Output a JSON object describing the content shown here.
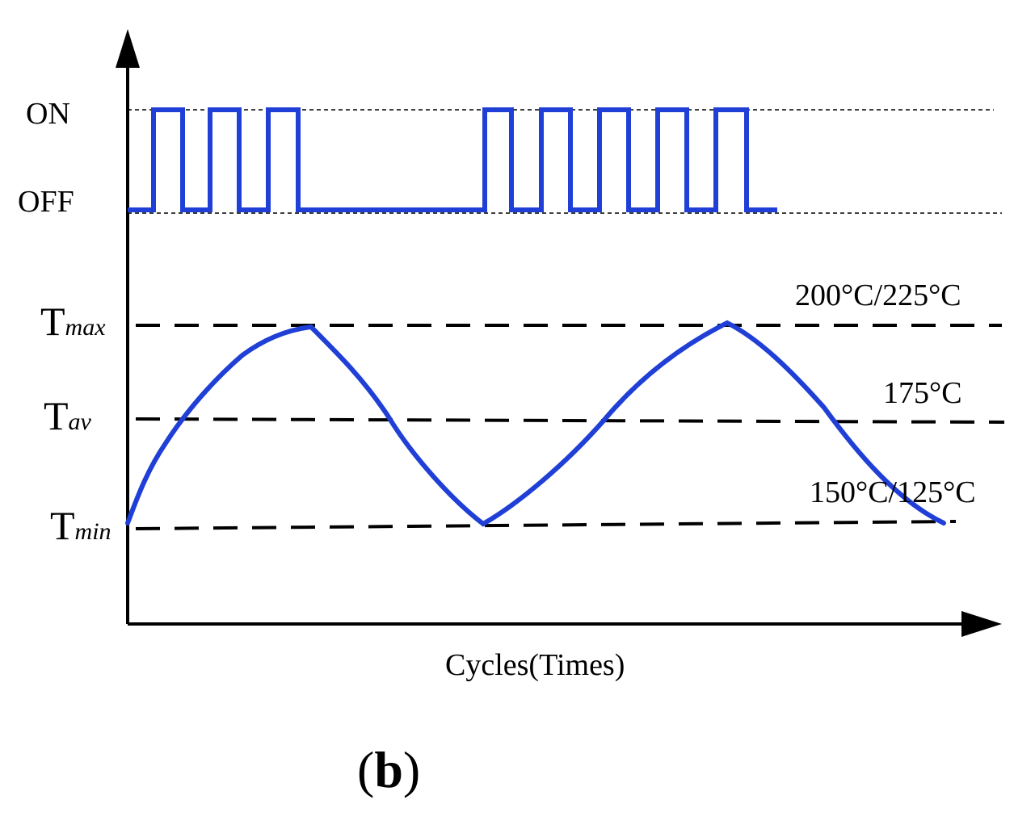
{
  "signal": {
    "on_label": "ON",
    "off_label": "OFF"
  },
  "temperature": {
    "max_label": {
      "base": "T",
      "sub": "max"
    },
    "av_label": {
      "base": "T",
      "sub": "av"
    },
    "min_label": {
      "base": "T",
      "sub": "min"
    },
    "max_value": "200°C/225°C",
    "av_value": "175°C",
    "min_value": "150°C/125°C"
  },
  "axis": {
    "x_label": "Cycles(Times)"
  },
  "caption": {
    "open": "(",
    "letter": "b",
    "close": ")"
  },
  "colors": {
    "curve": "#1f3fd6",
    "axis": "#000000",
    "guide": "#000000"
  }
}
